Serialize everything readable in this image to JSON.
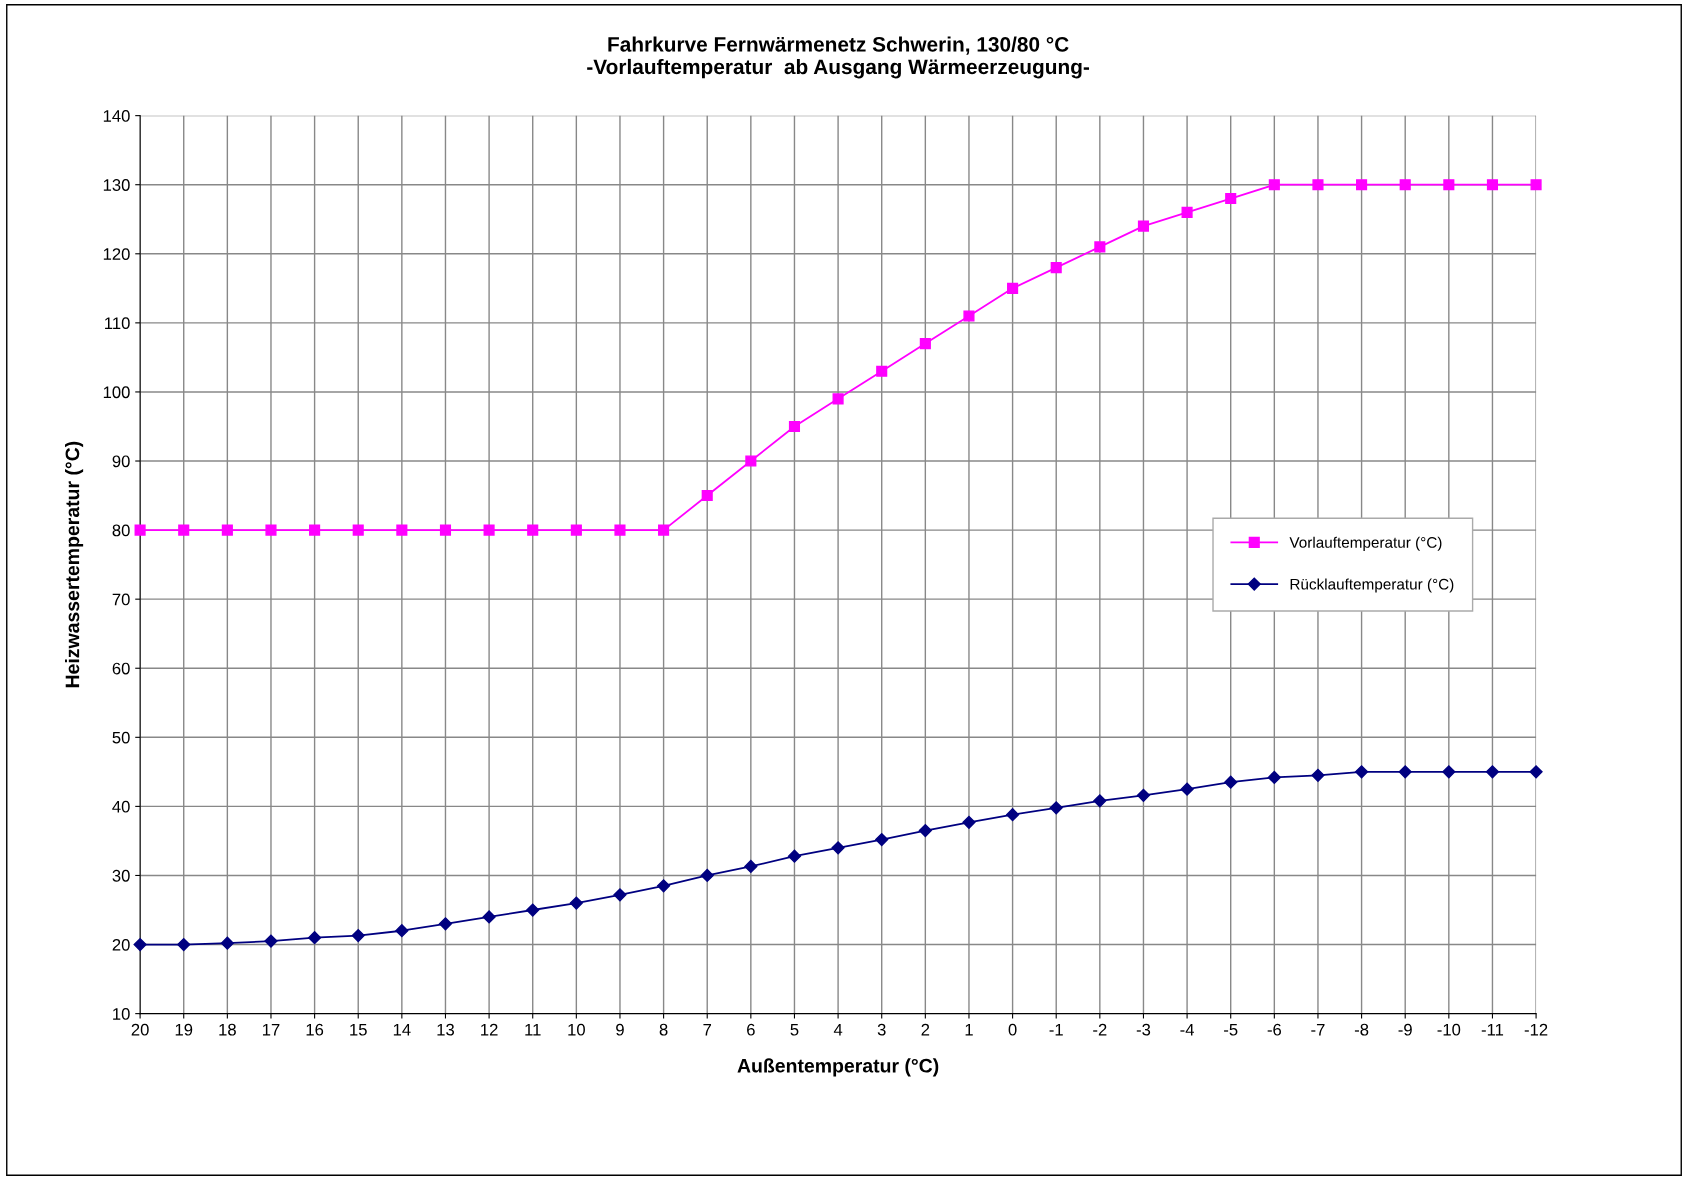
{
  "chart_data": {
    "type": "line",
    "title": "Fahrkurve Fernwärmenetz Schwerin, 130/80 °C\n-Vorlauftemperatur  ab Ausgang Wärmeerzeugung-",
    "xlabel": "Außentemperatur (°C)",
    "ylabel": "Heizwassertemperatur (°C)",
    "categories": [
      "20",
      "19",
      "18",
      "17",
      "16",
      "15",
      "14",
      "13",
      "12",
      "11",
      "10",
      "9",
      "8",
      "7",
      "6",
      "5",
      "4",
      "3",
      "2",
      "1",
      "0",
      "-1",
      "-2",
      "-3",
      "-4",
      "-5",
      "-6",
      "-7",
      "-8",
      "-9",
      "-10",
      "-11",
      "-12"
    ],
    "series": [
      {
        "name": "Vorlauftemperatur (°C)",
        "color": "#ff00ff",
        "marker": "square",
        "values": [
          80,
          80,
          80,
          80,
          80,
          80,
          80,
          80,
          80,
          80,
          80,
          80,
          80,
          85,
          90,
          95,
          99,
          103,
          107,
          111,
          115,
          118,
          121,
          124,
          126,
          128,
          130,
          130,
          130,
          130,
          130,
          130,
          130
        ]
      },
      {
        "name": "Rücklauftemperatur (°C)",
        "color": "#000080",
        "marker": "diamond",
        "values": [
          20,
          20,
          20.2,
          20.5,
          21,
          21.3,
          22,
          23,
          24,
          25,
          26,
          27.2,
          28.5,
          30,
          31.3,
          32.8,
          34,
          35.2,
          36.5,
          37.7,
          38.8,
          39.8,
          40.8,
          41.6,
          42.5,
          43.5,
          44.2,
          44.5,
          45,
          45,
          45,
          45,
          45
        ]
      }
    ],
    "ylim": [
      10,
      140
    ],
    "yticks": [
      10,
      20,
      30,
      40,
      50,
      60,
      70,
      80,
      90,
      100,
      110,
      120,
      130,
      140
    ],
    "grid": true,
    "legend": "center right",
    "line_style": "solid"
  }
}
